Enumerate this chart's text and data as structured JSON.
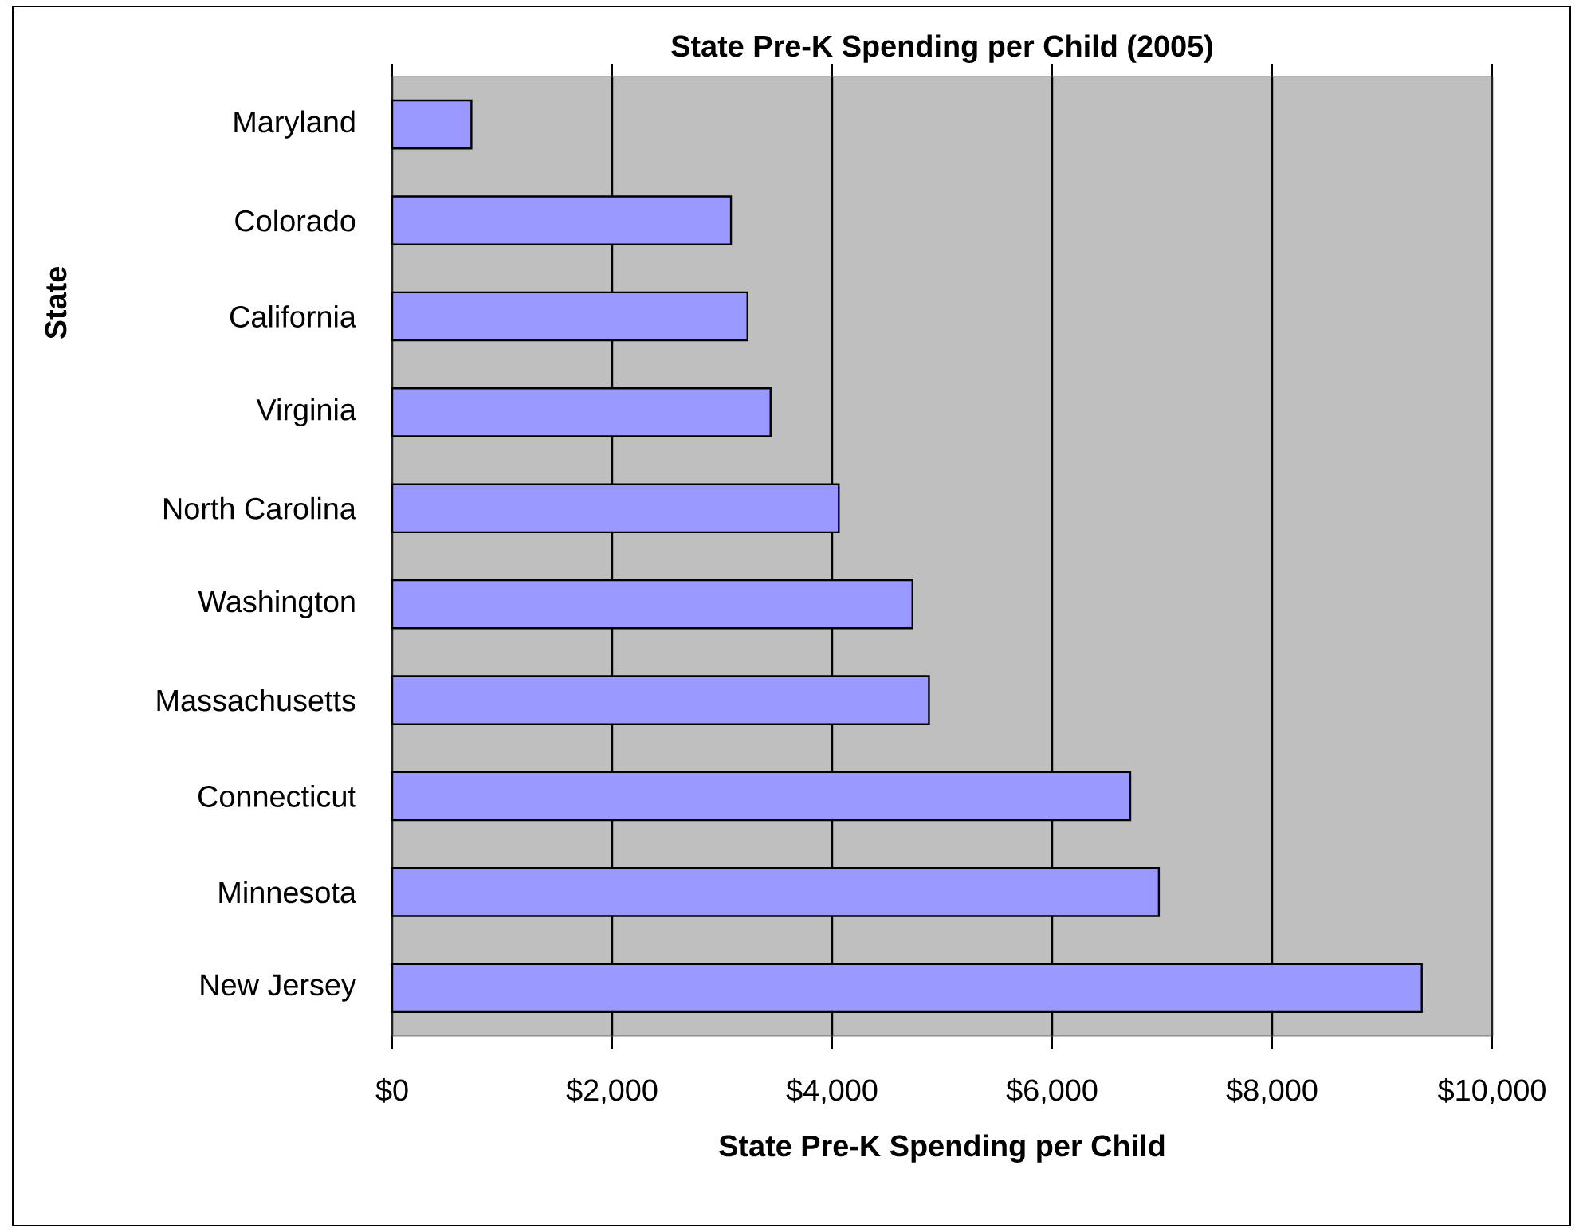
{
  "chart_data": {
    "type": "bar",
    "orientation": "horizontal",
    "title": "State Pre-K Spending per Child (2005)",
    "xlabel": "State Pre-K Spending per Child",
    "ylabel": "State",
    "categories": [
      "Maryland",
      "Colorado",
      "California",
      "Virginia",
      "North Carolina",
      "Washington",
      "Massachusetts",
      "Connecticut",
      "Minnesota",
      "New Jersey"
    ],
    "values": [
      720,
      3080,
      3230,
      3440,
      4060,
      4730,
      4880,
      6710,
      6970,
      9360
    ],
    "color": "#9999ff",
    "xlim": [
      0,
      10000
    ],
    "xticks": [
      {
        "value": 0,
        "label": "$0"
      },
      {
        "value": 2000,
        "label": "$2,000"
      },
      {
        "value": 4000,
        "label": "$4,000"
      },
      {
        "value": 6000,
        "label": "$6,000"
      },
      {
        "value": 8000,
        "label": "$8,000"
      },
      {
        "value": 10000,
        "label": "$10,000"
      }
    ],
    "grid": "x"
  }
}
